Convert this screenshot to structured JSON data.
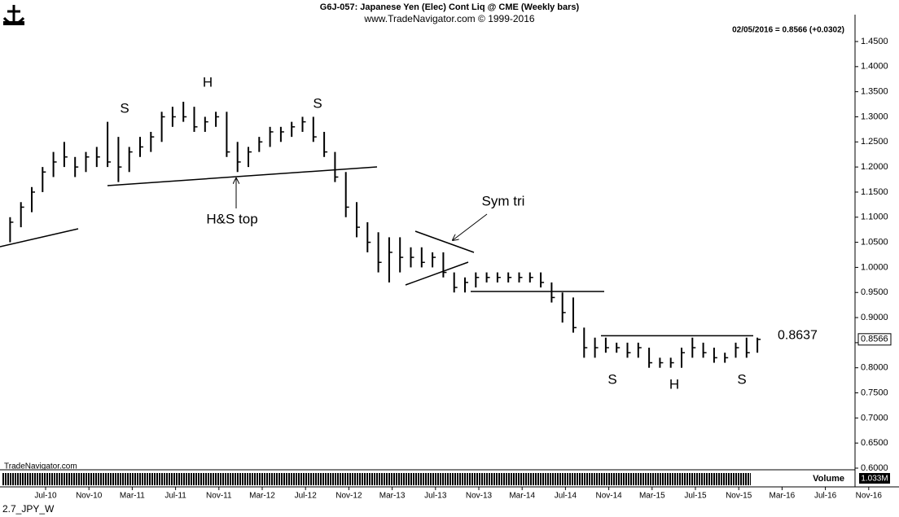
{
  "chart_data": {
    "type": "ohlc",
    "title": "G6J-057:  Japanese Yen (Elec) Cont Liq @ CME  (Weekly bars)",
    "subtitle": "www.TradeNavigator.com © 1999-2016",
    "last_quote": "02/05/2016 = 0.8566 (+0.0302)",
    "watermark": "TradeNavigator.com",
    "footer": "2.7_JPY_W",
    "volume_label": "Volume",
    "volume_scale": "1.033M",
    "resistance_level": 0.8637,
    "color": "#000000",
    "categories": [
      null,
      null,
      "Jul-10",
      null,
      null,
      null,
      "Nov-10",
      null,
      null,
      null,
      "Mar-11",
      null,
      null,
      null,
      "Jul-11",
      null,
      null,
      null,
      "Nov-11",
      null,
      null,
      null,
      "Mar-12",
      null,
      null,
      null,
      "Jul-12",
      null,
      null,
      null,
      "Nov-12",
      null,
      null,
      null,
      "Mar-13",
      null,
      null,
      null,
      "Jul-13",
      null,
      null,
      null,
      "Nov-13",
      null,
      null,
      null,
      "Mar-14",
      null,
      null,
      null,
      "Jul-14",
      null,
      null,
      null,
      "Nov-14",
      null,
      null,
      null,
      "Mar-15",
      null,
      null,
      null,
      "Jul-15",
      null,
      null,
      null,
      "Nov-15",
      null,
      null,
      null,
      "Mar-16",
      null,
      null,
      null,
      "Jul-16",
      null,
      null,
      null,
      "Nov-16"
    ],
    "series": [
      {
        "name": "High",
        "values": [
          1.1,
          1.13,
          1.16,
          1.2,
          1.23,
          1.25,
          1.22,
          1.23,
          1.24,
          1.29,
          1.26,
          1.24,
          1.26,
          1.27,
          1.31,
          1.32,
          1.33,
          1.32,
          1.3,
          1.31,
          1.31,
          1.25,
          1.24,
          1.26,
          1.28,
          1.28,
          1.29,
          1.3,
          1.3,
          1.27,
          1.23,
          1.19,
          1.13,
          1.09,
          1.07,
          1.06,
          1.06,
          1.04,
          1.04,
          1.03,
          1.03,
          0.99,
          0.98,
          0.99,
          0.99,
          0.99,
          0.99,
          0.99,
          0.99,
          0.99,
          0.97,
          0.95,
          0.94,
          0.88,
          0.86,
          0.86,
          0.85,
          0.85,
          0.85,
          0.84,
          0.82,
          0.82,
          0.84,
          0.86,
          0.85,
          0.84,
          0.83,
          0.85,
          0.86,
          0.86,
          null,
          null,
          null,
          null,
          null,
          null,
          null,
          null,
          null
        ]
      },
      {
        "name": "Low",
        "values": [
          1.05,
          1.08,
          1.11,
          1.15,
          1.18,
          1.2,
          1.18,
          1.19,
          1.2,
          1.2,
          1.17,
          1.19,
          1.22,
          1.23,
          1.25,
          1.28,
          1.29,
          1.27,
          1.27,
          1.28,
          1.22,
          1.19,
          1.2,
          1.23,
          1.24,
          1.25,
          1.26,
          1.27,
          1.25,
          1.22,
          1.17,
          1.1,
          1.06,
          1.03,
          0.99,
          0.97,
          0.99,
          1.0,
          1.0,
          1.0,
          0.98,
          0.95,
          0.95,
          0.96,
          0.97,
          0.97,
          0.97,
          0.97,
          0.97,
          0.96,
          0.93,
          0.89,
          0.87,
          0.82,
          0.82,
          0.83,
          0.83,
          0.82,
          0.82,
          0.8,
          0.8,
          0.8,
          0.8,
          0.82,
          0.82,
          0.81,
          0.81,
          0.82,
          0.82,
          0.83,
          null,
          null,
          null,
          null,
          null,
          null,
          null,
          null,
          null
        ]
      },
      {
        "name": "Close",
        "values": [
          1.09,
          1.12,
          1.15,
          1.19,
          1.21,
          1.22,
          1.2,
          1.22,
          1.22,
          1.21,
          1.2,
          1.23,
          1.24,
          1.26,
          1.3,
          1.3,
          1.3,
          1.28,
          1.29,
          1.3,
          1.23,
          1.21,
          1.23,
          1.25,
          1.27,
          1.27,
          1.28,
          1.29,
          1.26,
          1.23,
          1.18,
          1.12,
          1.08,
          1.05,
          1.01,
          1.03,
          1.02,
          1.02,
          1.01,
          1.02,
          0.99,
          0.96,
          0.97,
          0.98,
          0.98,
          0.98,
          0.98,
          0.98,
          0.98,
          0.97,
          0.94,
          0.91,
          0.88,
          0.84,
          0.84,
          0.84,
          0.84,
          0.83,
          0.84,
          0.81,
          0.81,
          0.81,
          0.83,
          0.84,
          0.83,
          0.82,
          0.82,
          0.84,
          0.83,
          0.8566,
          null,
          null,
          null,
          null,
          null,
          null,
          null,
          null,
          null
        ]
      }
    ],
    "ylim": [
      0.6,
      1.45
    ],
    "yticks": [
      {
        "value": 1.45,
        "label": "1.4500"
      },
      {
        "value": 1.4,
        "label": "1.4000"
      },
      {
        "value": 1.35,
        "label": "1.3500"
      },
      {
        "value": 1.3,
        "label": "1.3000"
      },
      {
        "value": 1.25,
        "label": "1.2500"
      },
      {
        "value": 1.2,
        "label": "1.2000"
      },
      {
        "value": 1.15,
        "label": "1.1500"
      },
      {
        "value": 1.1,
        "label": "1.1000"
      },
      {
        "value": 1.05,
        "label": "1.0500"
      },
      {
        "value": 1.0,
        "label": "1.0000"
      },
      {
        "value": 0.95,
        "label": "0.9500"
      },
      {
        "value": 0.9,
        "label": "0.9000"
      },
      {
        "value": 0.85,
        "label": "0.8500"
      },
      {
        "value": 0.8,
        "label": "0.8000"
      },
      {
        "value": 0.75,
        "label": "0.7500"
      },
      {
        "value": 0.7,
        "label": "0.7000"
      },
      {
        "value": 0.65,
        "label": "0.6500"
      },
      {
        "value": 0.6,
        "label": "0.6000"
      }
    ],
    "annotations": [
      "S",
      "H",
      "S",
      "H&S top",
      "Sym tri",
      "S",
      "H",
      "S"
    ]
  }
}
